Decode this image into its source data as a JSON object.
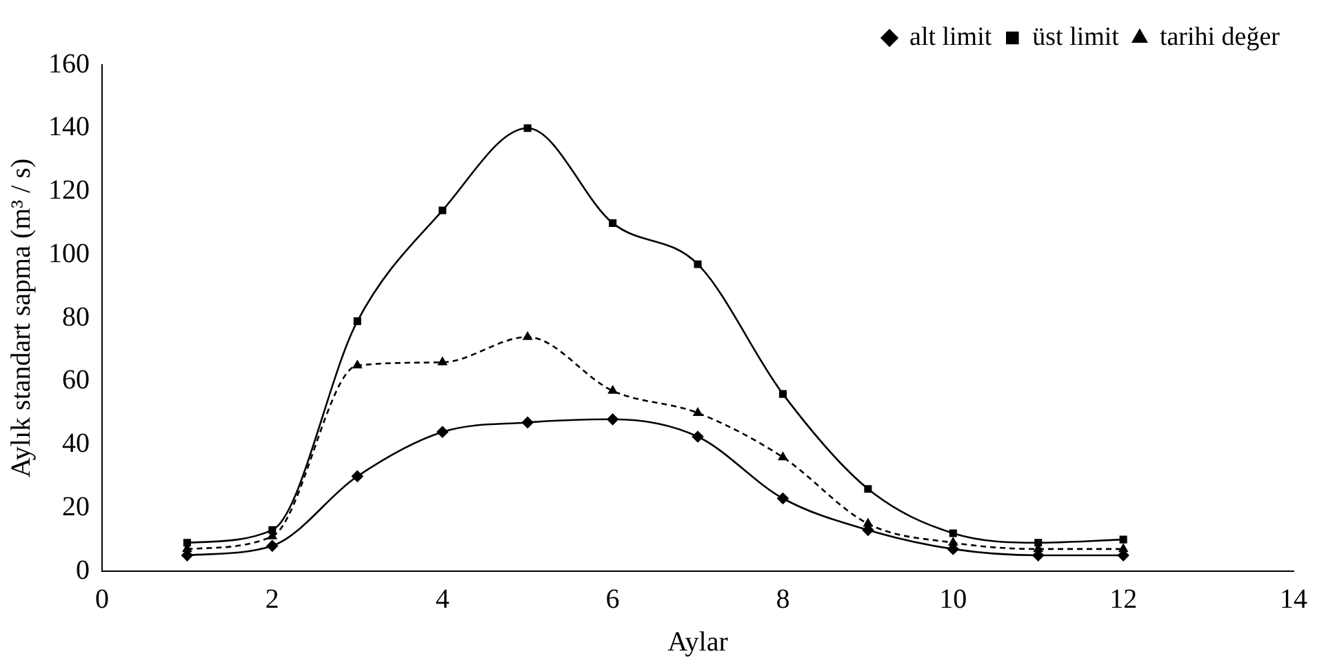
{
  "chart_data": {
    "type": "line",
    "xlabel": "Aylar",
    "ylabel": "Aylık standart sapma (m³ / s)",
    "x": [
      1,
      2,
      3,
      4,
      5,
      6,
      7,
      8,
      9,
      10,
      11,
      12
    ],
    "series": [
      {
        "name": "alt limit",
        "color": "#000000",
        "marker": "diamond",
        "line_style": "solid",
        "values": [
          5,
          8,
          30,
          44,
          47,
          48,
          42.5,
          23,
          13,
          7,
          5,
          5
        ]
      },
      {
        "name": "üst limit",
        "color": "#000000",
        "marker": "square",
        "line_style": "solid",
        "values": [
          9,
          13,
          79,
          114,
          140,
          110,
          97,
          56,
          26,
          12,
          9,
          10
        ]
      },
      {
        "name": "tarihi değer",
        "color": "#000000",
        "marker": "triangle",
        "line_style": "dashed",
        "values": [
          7,
          11,
          65,
          66,
          74,
          57,
          50,
          36,
          15,
          9,
          7,
          7
        ]
      }
    ],
    "xlim": [
      0,
      14
    ],
    "xticks": [
      0,
      2,
      4,
      6,
      8,
      10,
      12,
      14
    ],
    "ylim": [
      0,
      160
    ],
    "yticks": [
      0,
      20,
      40,
      60,
      80,
      100,
      120,
      140,
      160
    ],
    "grid": false,
    "legend": "top right"
  }
}
